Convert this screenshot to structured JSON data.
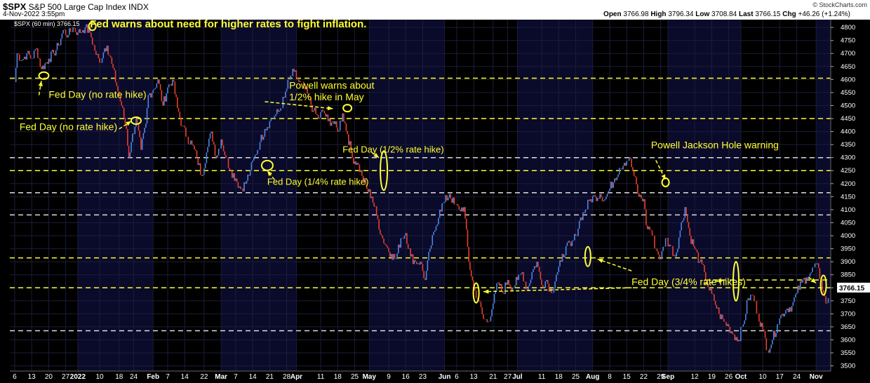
{
  "header": {
    "symbol": "$SPX",
    "name": "S&P 500 Large Cap Index",
    "exchange": "INDX",
    "timestamp": "4-Nov-2022 3:55pm",
    "open_label": "Open",
    "open": "3766.98",
    "high_label": "High",
    "high": "3796.34",
    "low_label": "Low",
    "low": "3708.84",
    "last_label": "Last",
    "last": "3766.15",
    "chg_label": "Chg",
    "chg": "+46.26 (+1.24%)",
    "brand": "© StockCharts.com"
  },
  "chart_data": {
    "type": "line",
    "legend": "$SPX (60 min) 3766.15",
    "y_range": [
      3480,
      4830
    ],
    "y_ticks": [
      3500,
      3550,
      3600,
      3650,
      3700,
      3750,
      3800,
      3850,
      3900,
      3950,
      4000,
      4050,
      4100,
      4150,
      4200,
      4250,
      4300,
      4350,
      4400,
      4450,
      4500,
      4550,
      4600,
      4650,
      4700,
      4750,
      4800
    ],
    "last_value": "3766.15",
    "x_labels": [
      {
        "t": "6",
        "d": 0
      },
      {
        "t": "13",
        "d": 7
      },
      {
        "t": "20",
        "d": 14
      },
      {
        "t": "27",
        "d": 21
      },
      {
        "t": "2022",
        "d": 26,
        "bold": true
      },
      {
        "t": "10",
        "d": 35
      },
      {
        "t": "18",
        "d": 43
      },
      {
        "t": "24",
        "d": 49
      },
      {
        "t": "Feb",
        "d": 57,
        "bold": true
      },
      {
        "t": "7",
        "d": 63
      },
      {
        "t": "14",
        "d": 70
      },
      {
        "t": "22",
        "d": 78
      },
      {
        "t": "Mar",
        "d": 85,
        "bold": true
      },
      {
        "t": "7",
        "d": 91
      },
      {
        "t": "14",
        "d": 98
      },
      {
        "t": "21",
        "d": 105
      },
      {
        "t": "28",
        "d": 112
      },
      {
        "t": "Apr",
        "d": 116,
        "bold": true
      },
      {
        "t": "11",
        "d": 126
      },
      {
        "t": "18",
        "d": 133
      },
      {
        "t": "25",
        "d": 140
      },
      {
        "t": "May",
        "d": 146,
        "bold": true
      },
      {
        "t": "9",
        "d": 154
      },
      {
        "t": "16",
        "d": 161
      },
      {
        "t": "23",
        "d": 168
      },
      {
        "t": "Jun",
        "d": 177,
        "bold": true
      },
      {
        "t": "6",
        "d": 182
      },
      {
        "t": "13",
        "d": 189
      },
      {
        "t": "21",
        "d": 197
      },
      {
        "t": "27",
        "d": 203
      },
      {
        "t": "Jul",
        "d": 207,
        "bold": true
      },
      {
        "t": "11",
        "d": 217
      },
      {
        "t": "18",
        "d": 224
      },
      {
        "t": "25",
        "d": 231
      },
      {
        "t": "Aug",
        "d": 238,
        "bold": true
      },
      {
        "t": "8",
        "d": 245
      },
      {
        "t": "15",
        "d": 252
      },
      {
        "t": "22",
        "d": 259
      },
      {
        "t": "29",
        "d": 266
      },
      {
        "t": "Sep",
        "d": 269,
        "bold": true
      },
      {
        "t": "12",
        "d": 280
      },
      {
        "t": "19",
        "d": 287
      },
      {
        "t": "26",
        "d": 294
      },
      {
        "t": "Oct",
        "d": 299,
        "bold": true
      },
      {
        "t": "10",
        "d": 308
      },
      {
        "t": "17",
        "d": 315
      },
      {
        "t": "24",
        "d": 322
      },
      {
        "t": "Nov",
        "d": 330,
        "bold": true
      }
    ],
    "day_range": [
      -2,
      336
    ],
    "series": [
      {
        "values": [
          [
            0,
            4590
          ],
          [
            1,
            4700
          ],
          [
            3,
            4675
          ],
          [
            5,
            4700
          ],
          [
            7,
            4680
          ],
          [
            9,
            4720
          ],
          [
            11,
            4640
          ],
          [
            14,
            4680
          ],
          [
            16,
            4700
          ],
          [
            18,
            4730
          ],
          [
            20,
            4790
          ],
          [
            22,
            4770
          ],
          [
            24,
            4800
          ],
          [
            26,
            4780
          ],
          [
            28,
            4790
          ],
          [
            29,
            4800
          ],
          [
            31,
            4780
          ],
          [
            33,
            4710
          ],
          [
            35,
            4665
          ],
          [
            37,
            4720
          ],
          [
            38,
            4730
          ],
          [
            40,
            4660
          ],
          [
            42,
            4575
          ],
          [
            44,
            4500
          ],
          [
            46,
            4410
          ],
          [
            47,
            4300
          ],
          [
            48,
            4360
          ],
          [
            50,
            4450
          ],
          [
            52,
            4330
          ],
          [
            54,
            4430
          ],
          [
            55,
            4540
          ],
          [
            57,
            4560
          ],
          [
            59,
            4600
          ],
          [
            61,
            4500
          ],
          [
            63,
            4570
          ],
          [
            65,
            4600
          ],
          [
            67,
            4490
          ],
          [
            69,
            4420
          ],
          [
            71,
            4380
          ],
          [
            73,
            4350
          ],
          [
            75,
            4300
          ],
          [
            77,
            4230
          ],
          [
            79,
            4320
          ],
          [
            81,
            4400
          ],
          [
            83,
            4300
          ],
          [
            85,
            4370
          ],
          [
            87,
            4300
          ],
          [
            89,
            4250
          ],
          [
            91,
            4220
          ],
          [
            93,
            4180
          ],
          [
            95,
            4200
          ],
          [
            97,
            4250
          ],
          [
            99,
            4310
          ],
          [
            101,
            4360
          ],
          [
            103,
            4410
          ],
          [
            105,
            4440
          ],
          [
            107,
            4460
          ],
          [
            109,
            4480
          ],
          [
            111,
            4530
          ],
          [
            113,
            4600
          ],
          [
            115,
            4630
          ],
          [
            117,
            4590
          ],
          [
            119,
            4570
          ],
          [
            121,
            4530
          ],
          [
            123,
            4480
          ],
          [
            125,
            4450
          ],
          [
            127,
            4480
          ],
          [
            129,
            4440
          ],
          [
            131,
            4440
          ],
          [
            133,
            4400
          ],
          [
            135,
            4470
          ],
          [
            137,
            4390
          ],
          [
            139,
            4300
          ],
          [
            141,
            4280
          ],
          [
            143,
            4230
          ],
          [
            145,
            4180
          ],
          [
            147,
            4150
          ],
          [
            149,
            4080
          ],
          [
            151,
            4000
          ],
          [
            153,
            3960
          ],
          [
            155,
            3930
          ],
          [
            157,
            3910
          ],
          [
            159,
            3990
          ],
          [
            161,
            4010
          ],
          [
            163,
            3920
          ],
          [
            165,
            3900
          ],
          [
            167,
            3900
          ],
          [
            169,
            3830
          ],
          [
            171,
            3950
          ],
          [
            173,
            4020
          ],
          [
            175,
            4100
          ],
          [
            177,
            4130
          ],
          [
            179,
            4160
          ],
          [
            181,
            4120
          ],
          [
            183,
            4100
          ],
          [
            185,
            4110
          ],
          [
            187,
            3900
          ],
          [
            189,
            3800
          ],
          [
            191,
            3750
          ],
          [
            193,
            3680
          ],
          [
            195,
            3670
          ],
          [
            197,
            3740
          ],
          [
            199,
            3820
          ],
          [
            201,
            3780
          ],
          [
            203,
            3830
          ],
          [
            205,
            3800
          ],
          [
            207,
            3830
          ],
          [
            209,
            3860
          ],
          [
            211,
            3790
          ],
          [
            213,
            3860
          ],
          [
            215,
            3900
          ],
          [
            217,
            3810
          ],
          [
            219,
            3830
          ],
          [
            221,
            3780
          ],
          [
            223,
            3850
          ],
          [
            225,
            3900
          ],
          [
            227,
            3960
          ],
          [
            229,
            3960
          ],
          [
            231,
            4000
          ],
          [
            233,
            4070
          ],
          [
            235,
            4100
          ],
          [
            237,
            4140
          ],
          [
            239,
            4150
          ],
          [
            241,
            4160
          ],
          [
            243,
            4140
          ],
          [
            245,
            4180
          ],
          [
            247,
            4220
          ],
          [
            249,
            4260
          ],
          [
            251,
            4280
          ],
          [
            253,
            4300
          ],
          [
            255,
            4230
          ],
          [
            257,
            4150
          ],
          [
            259,
            4140
          ],
          [
            260,
            4040
          ],
          [
            262,
            4020
          ],
          [
            264,
            3950
          ],
          [
            266,
            3910
          ],
          [
            268,
            3990
          ],
          [
            270,
            3960
          ],
          [
            272,
            3920
          ],
          [
            274,
            4020
          ],
          [
            276,
            4110
          ],
          [
            278,
            4000
          ],
          [
            280,
            3950
          ],
          [
            282,
            3900
          ],
          [
            284,
            3860
          ],
          [
            286,
            3790
          ],
          [
            288,
            3750
          ],
          [
            290,
            3700
          ],
          [
            292,
            3670
          ],
          [
            294,
            3650
          ],
          [
            296,
            3620
          ],
          [
            298,
            3600
          ],
          [
            300,
            3660
          ],
          [
            302,
            3760
          ],
          [
            304,
            3770
          ],
          [
            306,
            3700
          ],
          [
            308,
            3640
          ],
          [
            310,
            3560
          ],
          [
            312,
            3600
          ],
          [
            314,
            3660
          ],
          [
            316,
            3700
          ],
          [
            318,
            3720
          ],
          [
            320,
            3730
          ],
          [
            322,
            3780
          ],
          [
            324,
            3820
          ],
          [
            326,
            3840
          ],
          [
            328,
            3860
          ],
          [
            330,
            3890
          ],
          [
            332,
            3830
          ],
          [
            333,
            3780
          ],
          [
            334,
            3740
          ],
          [
            335,
            3760
          ]
        ]
      }
    ],
    "reference_lines": [
      {
        "y": 4605,
        "color": "#ffff33",
        "style": "dashed"
      },
      {
        "y": 4450,
        "color": "#ffff33",
        "style": "dashed"
      },
      {
        "y": 4300,
        "color": "#dddddd",
        "style": "dashed"
      },
      {
        "y": 4250,
        "color": "#ffff33",
        "style": "dashed"
      },
      {
        "y": 4165,
        "color": "#dddddd",
        "style": "dashed"
      },
      {
        "y": 4080,
        "color": "#dddddd",
        "style": "dashed"
      },
      {
        "y": 3915,
        "color": "#ffff33",
        "style": "dashed"
      },
      {
        "y": 3830,
        "color": "#ffff33",
        "style": "dashed",
        "from_day": 284
      },
      {
        "y": 3800,
        "color": "#ffff33",
        "style": "dashed"
      },
      {
        "y": 3635,
        "color": "#dddddd",
        "style": "dashed"
      }
    ],
    "annotations": [
      {
        "text": "Fed warns about need for higher rates to fight inflation.",
        "day": 31,
        "y": 4800,
        "kind": "big"
      },
      {
        "text": "Fed Day (no rate hike)",
        "day": 14,
        "y": 4530,
        "kind": "normal"
      },
      {
        "text": "Fed Day (no rate hike)",
        "day": 2,
        "y": 4405,
        "kind": "normal"
      },
      {
        "text": "Powell warns about",
        "day": 113,
        "y": 4565,
        "kind": "normal"
      },
      {
        "text": "1/2% hike in May",
        "day": 113,
        "y": 4520,
        "kind": "normal"
      },
      {
        "text": "Fed Day (1/2% rate hike)",
        "day": 135,
        "y": 4320,
        "kind": "small"
      },
      {
        "text": "Fed Day (1/4% rate hike)",
        "day": 104,
        "y": 4195,
        "kind": "small"
      },
      {
        "text": "Powell Jackson Hole warning",
        "day": 262,
        "y": 4335,
        "kind": "normal"
      },
      {
        "text": "Fed Day (3/4% rate hikes)",
        "day": 254,
        "y": 3810,
        "kind": "normal"
      }
    ],
    "colors": {
      "up": "#4a86e8",
      "down": "#e8402a",
      "annotation": "#ffff33",
      "grid": "#1c1c3a",
      "band": "#0a0a2a"
    }
  }
}
